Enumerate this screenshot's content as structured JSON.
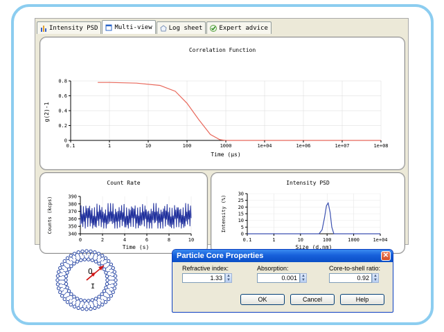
{
  "tabs": [
    {
      "label": "Intensity PSD",
      "icon": "bar-chart-icon"
    },
    {
      "label": "Multi-view",
      "icon": "multi-window-icon",
      "active": true
    },
    {
      "label": "Log sheet",
      "icon": "log-sheet-icon"
    },
    {
      "label": "Expert advice",
      "icon": "checkmark-icon"
    }
  ],
  "charts": {
    "correlation": {
      "title": "Correlation Function",
      "xlabel": "Time (µs)",
      "ylabel": "g(2)-1",
      "xticks": [
        "0.1",
        "1",
        "10",
        "100",
        "1000",
        "1e+04",
        "1e+06",
        "1e+07",
        "1e+08"
      ],
      "yticks": [
        "0",
        "0.2",
        "0.4",
        "0.6",
        "0.8"
      ]
    },
    "countrate": {
      "title": "Count Rate",
      "xlabel": "Time (s)",
      "ylabel": "Counts (kcps)",
      "xticks": [
        "0",
        "2",
        "4",
        "6",
        "8",
        "10"
      ],
      "yticks": [
        "340",
        "350",
        "360",
        "370",
        "380",
        "390"
      ]
    },
    "psd": {
      "title": "Intensity PSD",
      "xlabel": "Size (d.nm)",
      "ylabel": "Intensity (%)",
      "xticks": [
        "0.1",
        "1",
        "10",
        "100",
        "1000",
        "1e+04"
      ],
      "yticks": [
        "0",
        "5",
        "10",
        "15",
        "20",
        "25",
        "30"
      ]
    }
  },
  "chart_data": [
    {
      "type": "line",
      "title": "Correlation Function",
      "xlabel": "Time (µs)",
      "ylabel": "g(2)-1",
      "xscale": "log",
      "ylim": [
        0,
        0.8
      ],
      "color": "#e8675a",
      "x": [
        0.5,
        1,
        5,
        20,
        50,
        100,
        200,
        400,
        700,
        1000,
        10000,
        100000000
      ],
      "y": [
        0.78,
        0.78,
        0.77,
        0.74,
        0.66,
        0.5,
        0.28,
        0.08,
        0.01,
        0.0,
        0.0,
        0.0
      ]
    },
    {
      "type": "line",
      "title": "Count Rate",
      "xlabel": "Time (s)",
      "ylabel": "Counts (kcps)",
      "xlim": [
        0,
        10
      ],
      "ylim": [
        340,
        390
      ],
      "color": "#1f2f9c",
      "x": [
        0,
        0.5,
        1,
        1.5,
        2,
        2.5,
        3,
        3.5,
        4,
        4.5,
        5,
        5.5,
        6,
        6.5,
        7,
        7.5,
        8,
        8.5,
        9,
        9.5,
        10
      ],
      "y": [
        362,
        378,
        350,
        375,
        348,
        380,
        355,
        372,
        349,
        377,
        352,
        374,
        350,
        379,
        353,
        376,
        348,
        375,
        351,
        378,
        362
      ]
    },
    {
      "type": "line",
      "title": "Intensity PSD",
      "xlabel": "Size (d.nm)",
      "ylabel": "Intensity (%)",
      "xscale": "log",
      "ylim": [
        0,
        30
      ],
      "color": "#3a4fb0",
      "x": [
        0.1,
        50,
        65,
        80,
        95,
        110,
        130,
        150,
        180,
        10000
      ],
      "y": [
        0,
        0,
        3,
        12,
        21,
        23,
        16,
        5,
        0,
        0
      ]
    }
  ],
  "vesicle": {
    "outer_label": "O",
    "inner_label": "I"
  },
  "dialog": {
    "title": "Particle Core Properties",
    "fields": [
      {
        "label": "Refractive index:",
        "value": "1.33"
      },
      {
        "label": "Absorption:",
        "value": "0.001"
      },
      {
        "label": "Core-to-shell ratio:",
        "value": "0.92"
      }
    ],
    "buttons": {
      "ok": "OK",
      "cancel": "Cancel",
      "help": "Help"
    }
  }
}
